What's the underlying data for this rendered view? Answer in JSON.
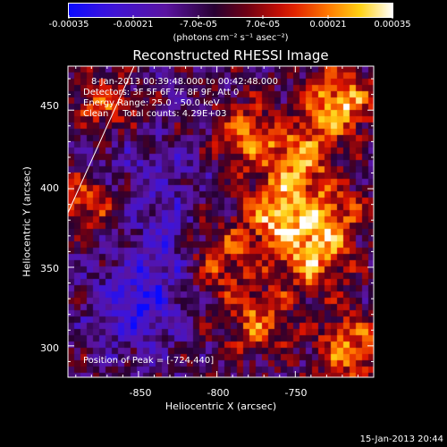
{
  "colorbar": {
    "tick_labels": [
      "-0.00035",
      "-0.00021",
      "-7.0e-05",
      "7.0e-05",
      "0.00021",
      "0.00035"
    ],
    "units": "(photons cm⁻² s⁻¹ asec⁻²)",
    "range": [
      -0.00035,
      0.00035
    ]
  },
  "title": "Reconstructed RHESSI Image",
  "info": {
    "time": "8-Jan-2013 00:39:48.000 to 00:42:48.000",
    "detectors": "Detectors: 3F 5F 6F 7F 8F 9F, Att 0",
    "energy": "Energy Range: 25.0 - 50.0 keV",
    "method_total": "Clean     Total counts: 4.29E+03",
    "peak": "Position of Peak = [-724,440]"
  },
  "axes": {
    "xlabel": "Heliocentric X (arcsec)",
    "ylabel": "Heliocentric Y (arcsec)",
    "xticks": [
      -850,
      -800,
      -750
    ],
    "yticks": [
      300,
      350,
      400,
      450
    ],
    "xrange": [
      -895,
      -700
    ],
    "yrange": [
      280,
      478
    ]
  },
  "datestamp": "15-Jan-2013 20:44"
}
